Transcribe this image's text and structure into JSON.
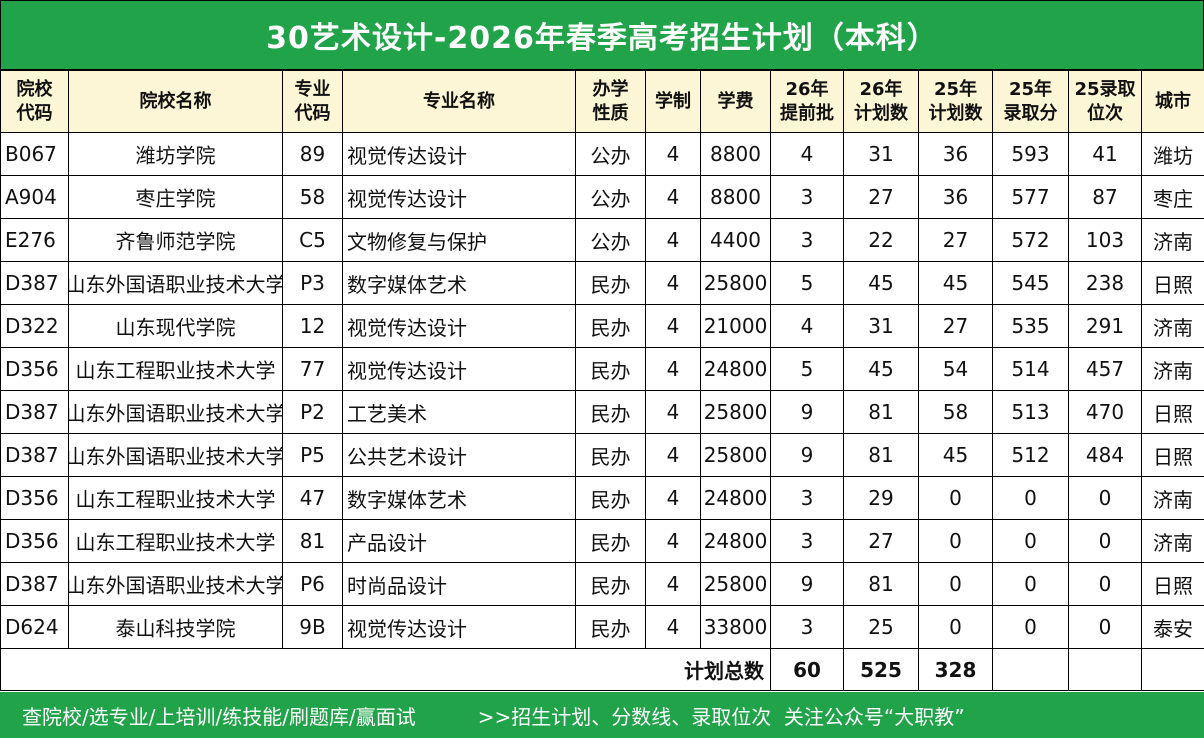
{
  "title": "30艺术设计-2026年春季高考招生计划（本科）",
  "table": {
    "header": [
      "院校\n代码",
      "院校名称",
      "专业\n代码",
      "专业名称",
      "办学\n性质",
      "学制",
      "学费",
      "26年\n提前批",
      "26年\n计划数",
      "25年\n计划数",
      "25年\n录取分",
      "25录取\n位次",
      "城市"
    ],
    "rows": [
      [
        "B067",
        "潍坊学院",
        "89",
        "视觉传达设计",
        "公办",
        4,
        8800,
        4,
        31,
        36,
        593,
        41,
        "潍坊"
      ],
      [
        "A904",
        "枣庄学院",
        "58",
        "视觉传达设计",
        "公办",
        4,
        8800,
        3,
        27,
        36,
        577,
        87,
        "枣庄"
      ],
      [
        "E276",
        "齐鲁师范学院",
        "C5",
        "文物修复与保护",
        "公办",
        4,
        4400,
        3,
        22,
        27,
        572,
        103,
        "济南"
      ],
      [
        "D387",
        "山东外国语职业技术大学",
        "P3",
        "数字媒体艺术",
        "民办",
        4,
        25800,
        5,
        45,
        45,
        545,
        238,
        "日照"
      ],
      [
        "D322",
        "山东现代学院",
        "12",
        "视觉传达设计",
        "民办",
        4,
        21000,
        4,
        31,
        27,
        535,
        291,
        "济南"
      ],
      [
        "D356",
        "山东工程职业技术大学",
        "77",
        "视觉传达设计",
        "民办",
        4,
        24800,
        5,
        45,
        54,
        514,
        457,
        "济南"
      ],
      [
        "D387",
        "山东外国语职业技术大学",
        "P2",
        "工艺美术",
        "民办",
        4,
        25800,
        9,
        81,
        58,
        513,
        470,
        "日照"
      ],
      [
        "D387",
        "山东外国语职业技术大学",
        "P5",
        "公共艺术设计",
        "民办",
        4,
        25800,
        9,
        81,
        45,
        512,
        484,
        "日照"
      ],
      [
        "D356",
        "山东工程职业技术大学",
        "47",
        "数字媒体艺术",
        "民办",
        4,
        24800,
        3,
        29,
        0,
        0,
        0,
        "济南"
      ],
      [
        "D356",
        "山东工程职业技术大学",
        "81",
        "产品设计",
        "民办",
        4,
        24800,
        3,
        27,
        0,
        0,
        0,
        "济南"
      ],
      [
        "D387",
        "山东外国语职业技术大学",
        "P6",
        "时尚品设计",
        "民办",
        4,
        25800,
        9,
        81,
        0,
        0,
        0,
        "日照"
      ],
      [
        "D624",
        "泰山科技学院",
        "9B",
        "视觉传达设计",
        "民办",
        4,
        33800,
        3,
        25,
        0,
        0,
        0,
        "泰安"
      ]
    ],
    "total": {
      "label": "计划总数",
      "values": [
        60,
        525,
        328
      ]
    }
  },
  "footer": {
    "left": "查院校/选专业/上培训/练技能/刷题库/赢面试",
    "right": ">>招生计划、分数线、录取位次  关注公众号“大职教”"
  }
}
